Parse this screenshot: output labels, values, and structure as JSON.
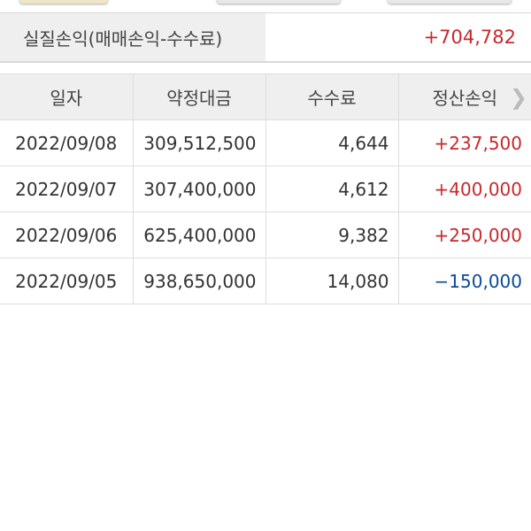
{
  "summary": {
    "label": "실질손익(매매손익-수수료)",
    "value": "+704,782",
    "value_color": "#c8282d"
  },
  "table": {
    "headers": [
      "일자",
      "약정대금",
      "수수료",
      "정산손익"
    ],
    "rows": [
      {
        "date": "2022/09/08",
        "amount": "309,512,500",
        "fee": "4,644",
        "pnl": "+237,500",
        "color": "#c8282d"
      },
      {
        "date": "2022/09/07",
        "amount": "307,400,000",
        "fee": "4,612",
        "pnl": "+400,000",
        "color": "#c8282d"
      },
      {
        "date": "2022/09/06",
        "amount": "625,400,000",
        "fee": "9,382",
        "pnl": "+250,000",
        "color": "#c8282d"
      },
      {
        "date": "2022/09/05",
        "amount": "938,650,000",
        "fee": "14,080",
        "pnl": "−150,000",
        "color": "#0b4a96"
      }
    ]
  },
  "colors": {
    "positive": "#c8282d",
    "negative": "#0b4a96"
  }
}
